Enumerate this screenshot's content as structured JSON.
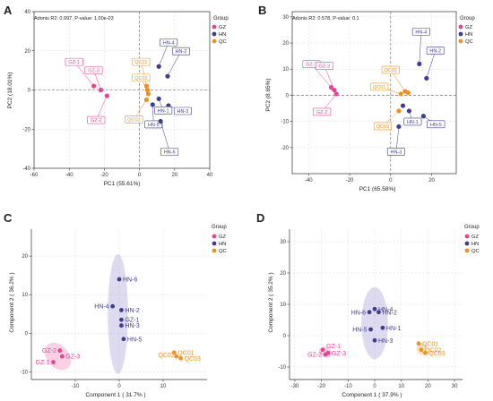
{
  "colors": {
    "GZ": "#e84393",
    "HN": "#3f3d8f",
    "QC": "#f0901e"
  },
  "chart_data": [
    {
      "panel": "A",
      "type": "scatter",
      "annotation": "Adonis R2: 0.997, P-value: 1.00e-03",
      "xlabel": "PC1 (55.61%)",
      "ylabel": "PC2 (18.01%)",
      "xlim": [
        -60,
        40
      ],
      "ylim": [
        -40,
        40
      ],
      "xticks": [
        "-60",
        "-40",
        "-20",
        "0",
        "20",
        "40"
      ],
      "yticks": [
        "-40",
        "-20",
        "0",
        "20",
        "40"
      ],
      "grid": true,
      "dashed_zero_lines": true,
      "legend_title": "Group",
      "legend_placement": "right",
      "legend": [
        "GZ",
        "HN",
        "QC"
      ],
      "series": [
        {
          "name": "GZ",
          "points": [
            {
              "label": "GZ-1",
              "x": -26,
              "y": 2
            },
            {
              "label": "GZ-3",
              "x": -22,
              "y": 0
            },
            {
              "label": "GZ-2",
              "x": -18.5,
              "y": -3
            }
          ]
        },
        {
          "name": "HN",
          "points": [
            {
              "label": "HN-4",
              "x": 11,
              "y": 12
            },
            {
              "label": "HN-2",
              "x": 16,
              "y": 7
            },
            {
              "label": "HN-3",
              "x": 16.5,
              "y": -8
            },
            {
              "label": "HN-1",
              "x": 11,
              "y": -4.5
            },
            {
              "label": "HN-5",
              "x": 7.5,
              "y": -7.5
            },
            {
              "label": "HN-6",
              "x": 12,
              "y": -16
            }
          ]
        },
        {
          "name": "QC",
          "points": [
            {
              "label": "QC01",
              "x": 4,
              "y": 2
            },
            {
              "label": "QC02",
              "x": 5,
              "y": -2
            },
            {
              "label": "QC03",
              "x": 4,
              "y": -5
            },
            {
              "label": "",
              "x": 4.5,
              "y": 0
            }
          ]
        }
      ]
    },
    {
      "panel": "B",
      "type": "scatter",
      "annotation": "Adonis R2: 0.578, P-value: 0.1",
      "xlabel": "PC1 (65.58%)",
      "ylabel": "PC2 (8.65%)",
      "xlim": [
        -48,
        32
      ],
      "ylim": [
        -30,
        32
      ],
      "xticks": [
        "-40",
        "-20",
        "0",
        "20"
      ],
      "yticks": [
        "-20",
        "-10",
        "0",
        "10",
        "20",
        "30"
      ],
      "grid": true,
      "dashed_zero_lines": true,
      "legend_title": "Group",
      "legend_placement": "right",
      "legend": [
        "GZ",
        "HN",
        "QC"
      ],
      "series": [
        {
          "name": "GZ",
          "points": [
            {
              "label": "GZ-1",
              "x": -29,
              "y": 3
            },
            {
              "label": "GZ-3",
              "x": -27.5,
              "y": 2
            },
            {
              "label": "GZ-2",
              "x": -26.5,
              "y": 0.5
            }
          ]
        },
        {
          "name": "HN",
          "points": [
            {
              "label": "HN-4",
              "x": 14,
              "y": 12
            },
            {
              "label": "HN-2",
              "x": 17.5,
              "y": 6.5
            },
            {
              "label": "HN-1",
              "x": 9,
              "y": -6
            },
            {
              "label": "HN-5",
              "x": 16,
              "y": -8
            },
            {
              "label": "HN-3",
              "x": 4,
              "y": -12
            },
            {
              "label": "",
              "x": 6,
              "y": -4
            }
          ]
        },
        {
          "name": "QC",
          "points": [
            {
              "label": "QC02",
              "x": 7,
              "y": 1.5
            },
            {
              "label": "QC03",
              "x": 4,
              "y": -6
            },
            {
              "label": "QC01",
              "x": 5,
              "y": 0.5
            },
            {
              "label": "",
              "x": 8.5,
              "y": 1
            }
          ]
        }
      ]
    },
    {
      "panel": "C",
      "type": "scatter",
      "xlabel": "Component 1 ( 31.7% )",
      "ylabel": "Component 2 ( 36.2% )",
      "xlim": [
        -20,
        20
      ],
      "ylim": [
        -12,
        27
      ],
      "xticks": [
        "-10",
        "0",
        "10"
      ],
      "yticks": [
        "-10",
        "0",
        "10",
        "20"
      ],
      "grid": true,
      "dashed_zero_lines": false,
      "confidence_ellipses": true,
      "legend_title": "Group",
      "legend_placement": "right",
      "legend": [
        "GZ",
        "HN",
        "QC"
      ],
      "series": [
        {
          "name": "GZ",
          "points": [
            {
              "label": "GZ-2",
              "x": -13.5,
              "y": -4.5
            },
            {
              "label": "GZ-3",
              "x": -13,
              "y": -6
            },
            {
              "label": "GZ-1",
              "x": -15,
              "y": -7.5
            }
          ]
        },
        {
          "name": "HN",
          "points": [
            {
              "label": "HN-6",
              "x": 0,
              "y": 14
            },
            {
              "label": "HN-4",
              "x": -1.5,
              "y": 7
            },
            {
              "label": "HN-2",
              "x": 0.5,
              "y": 6
            },
            {
              "label": "GZ-1",
              "x": 0.5,
              "y": 3.5
            },
            {
              "label": "HN-3",
              "x": 0.5,
              "y": 2
            },
            {
              "label": "HN-5",
              "x": 1,
              "y": -1.5
            }
          ]
        },
        {
          "name": "QC",
          "points": [
            {
              "label": "QC01",
              "x": 12.5,
              "y": -5
            },
            {
              "label": "QC02",
              "x": 13,
              "y": -6
            },
            {
              "label": "QC03",
              "x": 14,
              "y": -6.5
            }
          ]
        }
      ],
      "ellipses": [
        {
          "group": "GZ",
          "cx": -14,
          "cy": -6,
          "rx": 2.5,
          "ry": 4,
          "angle": 40
        },
        {
          "group": "HN",
          "cx": -0.3,
          "cy": 5,
          "rx": 2.3,
          "ry": 15.5,
          "angle": 0
        }
      ]
    },
    {
      "panel": "D",
      "type": "scatter",
      "xlabel": "Component 1 ( 37.9% )",
      "ylabel": "Component 2 ( 35.2% )",
      "xlim": [
        -32,
        33
      ],
      "ylim": [
        -14,
        34
      ],
      "xticks": [
        "-30",
        "-20",
        "-10",
        "0",
        "10",
        "20",
        "30"
      ],
      "yticks": [
        "-10",
        "0",
        "10",
        "20",
        "30"
      ],
      "grid": true,
      "dashed_zero_lines": false,
      "confidence_ellipses": true,
      "legend_title": "Group",
      "legend_placement": "right",
      "legend": [
        "GZ",
        "HN",
        "QC"
      ],
      "series": [
        {
          "name": "GZ",
          "points": [
            {
              "label": "GZ-1",
              "x": -19.5,
              "y": -4.5
            },
            {
              "label": "GZ-2",
              "x": -18.5,
              "y": -6
            },
            {
              "label": "GZ-3",
              "x": -17.5,
              "y": -5.5
            }
          ]
        },
        {
          "name": "HN",
          "points": [
            {
              "label": "HN-6",
              "x": -2,
              "y": 7.5
            },
            {
              "label": "HN-4",
              "x": 0,
              "y": 8.5
            },
            {
              "label": "HN-2",
              "x": 1.5,
              "y": 7.5
            },
            {
              "label": "HN-5",
              "x": -1.5,
              "y": 2
            },
            {
              "label": "HN-1",
              "x": 3,
              "y": 2.5
            },
            {
              "label": "HN-3",
              "x": 0,
              "y": -1.5
            }
          ]
        },
        {
          "name": "QC",
          "points": [
            {
              "label": "QC01",
              "x": 16.5,
              "y": -2.5
            },
            {
              "label": "QC02",
              "x": 17.5,
              "y": -4.5
            },
            {
              "label": "QC03",
              "x": 19,
              "y": -5.5
            }
          ]
        }
      ],
      "ellipses": [
        {
          "group": "GZ",
          "cx": -18.5,
          "cy": -5.3,
          "rx": 2.6,
          "ry": 1.6,
          "angle": -20
        },
        {
          "group": "HN",
          "cx": 0,
          "cy": 4,
          "rx": 5,
          "ry": 11.5,
          "angle": 0
        },
        {
          "group": "QC",
          "cx": 17.7,
          "cy": -4.2,
          "rx": 2.0,
          "ry": 2.0,
          "angle": 0
        }
      ]
    }
  ]
}
